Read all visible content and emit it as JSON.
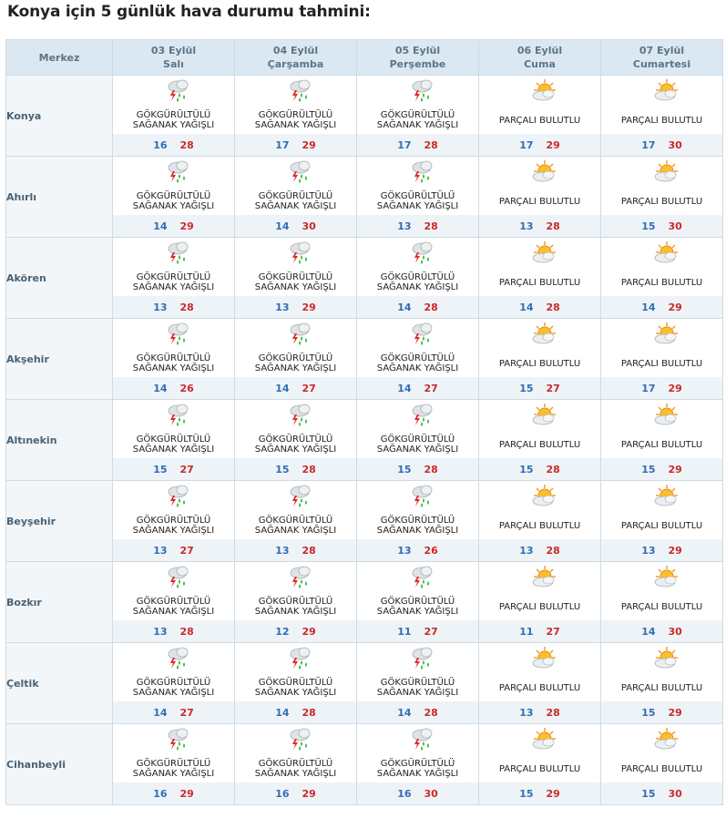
{
  "title": "Konya için 5 günlük hava durumu tahmini:",
  "header": {
    "merkez": "Merkez",
    "days": [
      {
        "date": "03 Eylül",
        "weekday": "Salı"
      },
      {
        "date": "04 Eylül",
        "weekday": "Çarşamba"
      },
      {
        "date": "05 Eylül",
        "weekday": "Perşembe"
      },
      {
        "date": "06 Eylül",
        "weekday": "Cuma"
      },
      {
        "date": "07 Eylül",
        "weekday": "Cumartesi"
      }
    ]
  },
  "conditions": {
    "storm": {
      "line1": "GÖKGÜRÜLTÜLÜ",
      "line2": "SAĞANAK YAĞIŞLI",
      "icon": "thunder-rain-icon"
    },
    "partly": {
      "line1": "PARÇALI BULUTLU",
      "line2": "",
      "icon": "partly-cloudy-icon"
    }
  },
  "colors": {
    "min": "#2f6fb5",
    "max": "#cc2a2a",
    "header_bg": "#dbe8f1"
  },
  "rows": [
    {
      "city": "Konya",
      "days": [
        {
          "cond": "storm",
          "min": "16",
          "max": "28"
        },
        {
          "cond": "storm",
          "min": "17",
          "max": "29"
        },
        {
          "cond": "storm",
          "min": "17",
          "max": "28"
        },
        {
          "cond": "partly",
          "min": "17",
          "max": "29"
        },
        {
          "cond": "partly",
          "min": "17",
          "max": "30"
        }
      ]
    },
    {
      "city": "Ahırlı",
      "days": [
        {
          "cond": "storm",
          "min": "14",
          "max": "29"
        },
        {
          "cond": "storm",
          "min": "14",
          "max": "30"
        },
        {
          "cond": "storm",
          "min": "13",
          "max": "28"
        },
        {
          "cond": "partly",
          "min": "13",
          "max": "28"
        },
        {
          "cond": "partly",
          "min": "15",
          "max": "30"
        }
      ]
    },
    {
      "city": "Akören",
      "days": [
        {
          "cond": "storm",
          "min": "13",
          "max": "28"
        },
        {
          "cond": "storm",
          "min": "13",
          "max": "29"
        },
        {
          "cond": "storm",
          "min": "14",
          "max": "28"
        },
        {
          "cond": "partly",
          "min": "14",
          "max": "28"
        },
        {
          "cond": "partly",
          "min": "14",
          "max": "29"
        }
      ]
    },
    {
      "city": "Akşehir",
      "days": [
        {
          "cond": "storm",
          "min": "14",
          "max": "26"
        },
        {
          "cond": "storm",
          "min": "14",
          "max": "27"
        },
        {
          "cond": "storm",
          "min": "14",
          "max": "27"
        },
        {
          "cond": "partly",
          "min": "15",
          "max": "27"
        },
        {
          "cond": "partly",
          "min": "17",
          "max": "29"
        }
      ]
    },
    {
      "city": "Altınekin",
      "days": [
        {
          "cond": "storm",
          "min": "15",
          "max": "27"
        },
        {
          "cond": "storm",
          "min": "15",
          "max": "28"
        },
        {
          "cond": "storm",
          "min": "15",
          "max": "28"
        },
        {
          "cond": "partly",
          "min": "15",
          "max": "28"
        },
        {
          "cond": "partly",
          "min": "15",
          "max": "29"
        }
      ]
    },
    {
      "city": "Beyşehir",
      "days": [
        {
          "cond": "storm",
          "min": "13",
          "max": "27"
        },
        {
          "cond": "storm",
          "min": "13",
          "max": "28"
        },
        {
          "cond": "storm",
          "min": "13",
          "max": "26"
        },
        {
          "cond": "partly",
          "min": "13",
          "max": "28"
        },
        {
          "cond": "partly",
          "min": "13",
          "max": "29"
        }
      ]
    },
    {
      "city": "Bozkır",
      "days": [
        {
          "cond": "storm",
          "min": "13",
          "max": "28"
        },
        {
          "cond": "storm",
          "min": "12",
          "max": "29"
        },
        {
          "cond": "storm",
          "min": "11",
          "max": "27"
        },
        {
          "cond": "partly",
          "min": "11",
          "max": "27"
        },
        {
          "cond": "partly",
          "min": "14",
          "max": "30"
        }
      ]
    },
    {
      "city": "Çeltik",
      "days": [
        {
          "cond": "storm",
          "min": "14",
          "max": "27"
        },
        {
          "cond": "storm",
          "min": "14",
          "max": "28"
        },
        {
          "cond": "storm",
          "min": "14",
          "max": "28"
        },
        {
          "cond": "partly",
          "min": "13",
          "max": "28"
        },
        {
          "cond": "partly",
          "min": "15",
          "max": "29"
        }
      ]
    },
    {
      "city": "Cihanbeyli",
      "days": [
        {
          "cond": "storm",
          "min": "16",
          "max": "29"
        },
        {
          "cond": "storm",
          "min": "16",
          "max": "29"
        },
        {
          "cond": "storm",
          "min": "16",
          "max": "30"
        },
        {
          "cond": "partly",
          "min": "15",
          "max": "29"
        },
        {
          "cond": "partly",
          "min": "15",
          "max": "30"
        }
      ]
    }
  ]
}
